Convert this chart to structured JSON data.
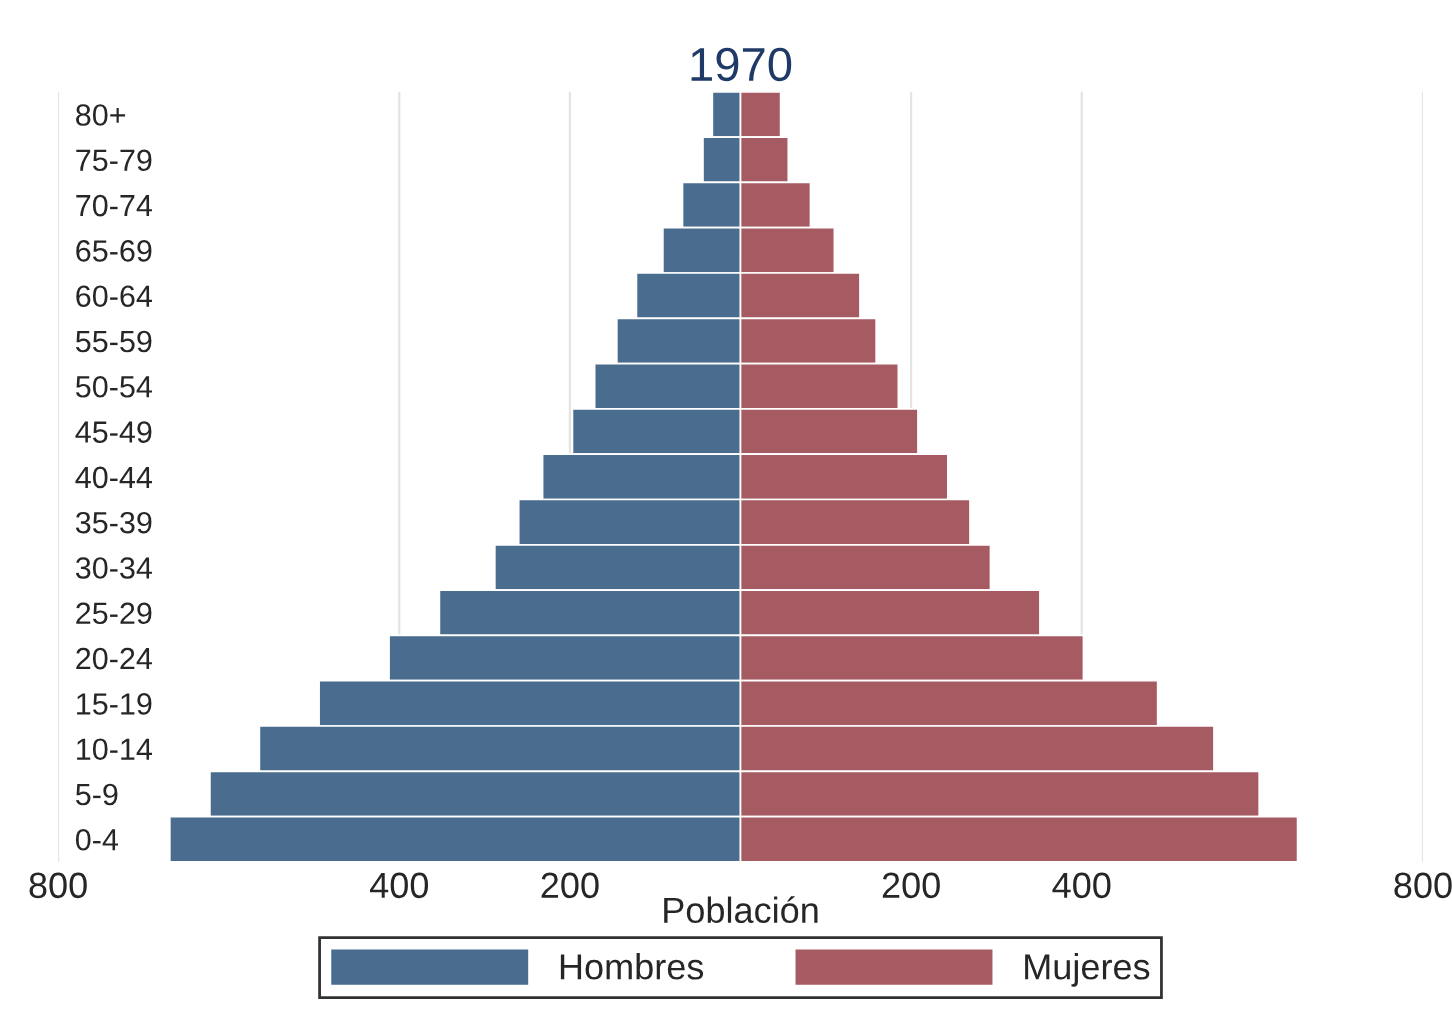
{
  "chart_data": {
    "type": "bar",
    "orientation": "horizontal",
    "title": "1970",
    "xlabel": "Población",
    "categories": [
      "80+",
      "75-79",
      "70-74",
      "65-69",
      "60-64",
      "55-59",
      "50-54",
      "45-49",
      "40-44",
      "35-39",
      "30-34",
      "25-29",
      "20-24",
      "15-19",
      "10-14",
      "5-9",
      "0-4"
    ],
    "series": [
      {
        "name": "Hombres",
        "color": "#4a6d8f",
        "values": [
          -33,
          -44,
          -68,
          -91,
          -122,
          -145,
          -171,
          -197,
          -232,
          -260,
          -288,
          -353,
          -412,
          -494,
          -564,
          -622,
          -669
        ]
      },
      {
        "name": "Mujeres",
        "color": "#a65a61",
        "values": [
          47,
          56,
          82,
          110,
          140,
          159,
          185,
          208,
          243,
          269,
          293,
          351,
          402,
          489,
          555,
          608,
          653
        ]
      }
    ],
    "xlim": [
      -800,
      800
    ],
    "xticks": [
      {
        "value": -800,
        "label": "800"
      },
      {
        "value": -400,
        "label": "400"
      },
      {
        "value": -200,
        "label": "200"
      },
      200,
      400,
      800
    ],
    "grid": "x",
    "legend": "bottom",
    "stacked": true
  }
}
